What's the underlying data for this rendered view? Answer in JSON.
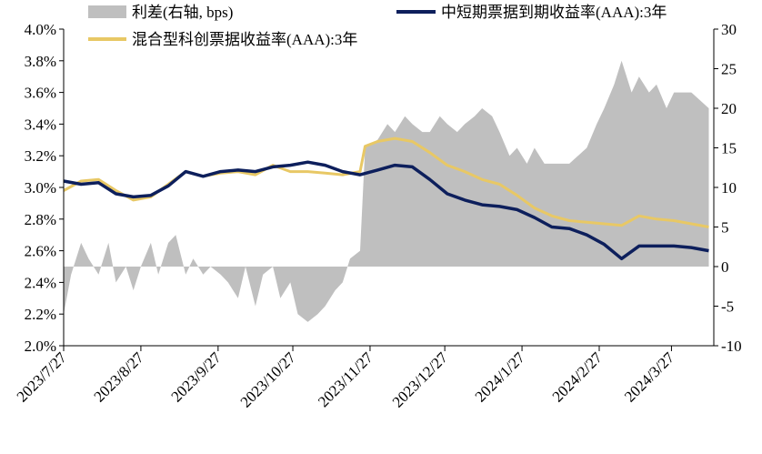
{
  "chart_data": {
    "type": "line",
    "legend": [
      {
        "key": "spread",
        "label": "利差(右轴, bps)",
        "style": "area",
        "color": "#bfbfbf"
      },
      {
        "key": "cp",
        "label": "中短期票据到期收益率(AAA):3年",
        "style": "line",
        "color": "#0d1f5c"
      },
      {
        "key": "tech",
        "label": "混合型科创票据收益率(AAA):3年",
        "style": "line",
        "color": "#e8c865"
      }
    ],
    "legend_placement": "top",
    "x_tick_labels": [
      "2023/7/27",
      "2023/8/27",
      "2023/9/27",
      "2023/10/27",
      "2023/11/27",
      "2023/12/27",
      "2024/1/27",
      "2024/2/27",
      "2024/3/27"
    ],
    "left_axis": {
      "ylim": [
        2.0,
        4.0
      ],
      "ticks": [
        "2.0%",
        "2.2%",
        "2.4%",
        "2.6%",
        "2.8%",
        "3.0%",
        "3.2%",
        "3.4%",
        "3.6%",
        "3.8%",
        "4.0%"
      ]
    },
    "right_axis": {
      "ylim": [
        -10,
        30
      ],
      "ticks": [
        "-10",
        "-5",
        "0",
        "5",
        "10",
        "15",
        "20",
        "25",
        "30"
      ]
    },
    "grid": false,
    "series": [
      {
        "key": "cp",
        "points": [
          [
            "2023-07-27",
            3.04
          ],
          [
            "2023-08-03",
            3.02
          ],
          [
            "2023-08-10",
            3.03
          ],
          [
            "2023-08-17",
            2.96
          ],
          [
            "2023-08-24",
            2.94
          ],
          [
            "2023-08-31",
            2.95
          ],
          [
            "2023-09-07",
            3.01
          ],
          [
            "2023-09-14",
            3.1
          ],
          [
            "2023-09-21",
            3.07
          ],
          [
            "2023-09-28",
            3.1
          ],
          [
            "2023-10-05",
            3.11
          ],
          [
            "2023-10-12",
            3.1
          ],
          [
            "2023-10-19",
            3.13
          ],
          [
            "2023-10-26",
            3.14
          ],
          [
            "2023-11-02",
            3.16
          ],
          [
            "2023-11-09",
            3.14
          ],
          [
            "2023-11-16",
            3.1
          ],
          [
            "2023-11-23",
            3.08
          ],
          [
            "2023-11-30",
            3.11
          ],
          [
            "2023-12-07",
            3.14
          ],
          [
            "2023-12-14",
            3.13
          ],
          [
            "2023-12-21",
            3.05
          ],
          [
            "2023-12-28",
            2.96
          ],
          [
            "2024-01-04",
            2.92
          ],
          [
            "2024-01-11",
            2.89
          ],
          [
            "2024-01-18",
            2.88
          ],
          [
            "2024-01-25",
            2.86
          ],
          [
            "2024-02-01",
            2.81
          ],
          [
            "2024-02-08",
            2.75
          ],
          [
            "2024-02-15",
            2.74
          ],
          [
            "2024-02-22",
            2.7
          ],
          [
            "2024-02-29",
            2.64
          ],
          [
            "2024-03-07",
            2.55
          ],
          [
            "2024-03-14",
            2.63
          ],
          [
            "2024-03-21",
            2.63
          ],
          [
            "2024-03-28",
            2.63
          ],
          [
            "2024-04-04",
            2.62
          ],
          [
            "2024-04-11",
            2.6
          ]
        ]
      },
      {
        "key": "tech",
        "points": [
          [
            "2023-07-27",
            2.98
          ],
          [
            "2023-08-03",
            3.04
          ],
          [
            "2023-08-10",
            3.05
          ],
          [
            "2023-08-17",
            2.98
          ],
          [
            "2023-08-24",
            2.92
          ],
          [
            "2023-08-31",
            2.94
          ],
          [
            "2023-09-07",
            3.02
          ],
          [
            "2023-09-14",
            3.1
          ],
          [
            "2023-09-21",
            3.07
          ],
          [
            "2023-09-28",
            3.09
          ],
          [
            "2023-10-05",
            3.1
          ],
          [
            "2023-10-12",
            3.08
          ],
          [
            "2023-10-19",
            3.14
          ],
          [
            "2023-10-26",
            3.1
          ],
          [
            "2023-11-02",
            3.1
          ],
          [
            "2023-11-09",
            3.09
          ],
          [
            "2023-11-16",
            3.08
          ],
          [
            "2023-11-23",
            3.1
          ],
          [
            "2023-11-25",
            3.26
          ],
          [
            "2023-11-30",
            3.29
          ],
          [
            "2023-12-07",
            3.31
          ],
          [
            "2023-12-14",
            3.29
          ],
          [
            "2023-12-21",
            3.22
          ],
          [
            "2023-12-28",
            3.14
          ],
          [
            "2024-01-04",
            3.1
          ],
          [
            "2024-01-11",
            3.05
          ],
          [
            "2024-01-18",
            3.02
          ],
          [
            "2024-01-25",
            2.95
          ],
          [
            "2024-02-01",
            2.87
          ],
          [
            "2024-02-08",
            2.82
          ],
          [
            "2024-02-15",
            2.79
          ],
          [
            "2024-02-22",
            2.78
          ],
          [
            "2024-03-07",
            2.76
          ],
          [
            "2024-03-14",
            2.82
          ],
          [
            "2024-03-21",
            2.8
          ],
          [
            "2024-03-28",
            2.79
          ],
          [
            "2024-04-04",
            2.77
          ],
          [
            "2024-04-11",
            2.75
          ]
        ]
      },
      {
        "key": "spread",
        "points": [
          [
            "2023-07-27",
            -6
          ],
          [
            "2023-07-30",
            -1
          ],
          [
            "2023-08-03",
            3
          ],
          [
            "2023-08-06",
            1
          ],
          [
            "2023-08-10",
            -1
          ],
          [
            "2023-08-14",
            3
          ],
          [
            "2023-08-17",
            -2
          ],
          [
            "2023-08-21",
            0
          ],
          [
            "2023-08-24",
            -3
          ],
          [
            "2023-08-27",
            0
          ],
          [
            "2023-08-31",
            3
          ],
          [
            "2023-09-03",
            -1
          ],
          [
            "2023-09-07",
            3
          ],
          [
            "2023-09-10",
            4
          ],
          [
            "2023-09-14",
            -1
          ],
          [
            "2023-09-17",
            1
          ],
          [
            "2023-09-21",
            -1
          ],
          [
            "2023-09-24",
            0
          ],
          [
            "2023-09-28",
            -1
          ],
          [
            "2023-10-01",
            -2
          ],
          [
            "2023-10-05",
            -4
          ],
          [
            "2023-10-08",
            0
          ],
          [
            "2023-10-12",
            -5
          ],
          [
            "2023-10-15",
            -1
          ],
          [
            "2023-10-19",
            0
          ],
          [
            "2023-10-22",
            -4
          ],
          [
            "2023-10-26",
            -2
          ],
          [
            "2023-10-29",
            -6
          ],
          [
            "2023-11-02",
            -7
          ],
          [
            "2023-11-06",
            -6
          ],
          [
            "2023-11-09",
            -5
          ],
          [
            "2023-11-13",
            -3
          ],
          [
            "2023-11-16",
            -2
          ],
          [
            "2023-11-19",
            1
          ],
          [
            "2023-11-23",
            2
          ],
          [
            "2023-11-25",
            15
          ],
          [
            "2023-11-30",
            16
          ],
          [
            "2023-12-04",
            18
          ],
          [
            "2023-12-07",
            17
          ],
          [
            "2023-12-11",
            19
          ],
          [
            "2023-12-14",
            18
          ],
          [
            "2023-12-18",
            17
          ],
          [
            "2023-12-21",
            17
          ],
          [
            "2023-12-25",
            19
          ],
          [
            "2023-12-28",
            18
          ],
          [
            "2024-01-01",
            17
          ],
          [
            "2024-01-04",
            18
          ],
          [
            "2024-01-08",
            19
          ],
          [
            "2024-01-11",
            20
          ],
          [
            "2024-01-15",
            19
          ],
          [
            "2024-01-18",
            17
          ],
          [
            "2024-01-22",
            14
          ],
          [
            "2024-01-25",
            15
          ],
          [
            "2024-01-29",
            13
          ],
          [
            "2024-02-01",
            15
          ],
          [
            "2024-02-05",
            13
          ],
          [
            "2024-02-08",
            13
          ],
          [
            "2024-02-15",
            13
          ],
          [
            "2024-02-22",
            15
          ],
          [
            "2024-02-26",
            18
          ],
          [
            "2024-02-29",
            20
          ],
          [
            "2024-03-04",
            23
          ],
          [
            "2024-03-07",
            26
          ],
          [
            "2024-03-11",
            22
          ],
          [
            "2024-03-14",
            24
          ],
          [
            "2024-03-18",
            22
          ],
          [
            "2024-03-21",
            23
          ],
          [
            "2024-03-25",
            20
          ],
          [
            "2024-03-28",
            22
          ],
          [
            "2024-04-01",
            22
          ],
          [
            "2024-04-04",
            22
          ],
          [
            "2024-04-11",
            20
          ]
        ]
      }
    ]
  }
}
